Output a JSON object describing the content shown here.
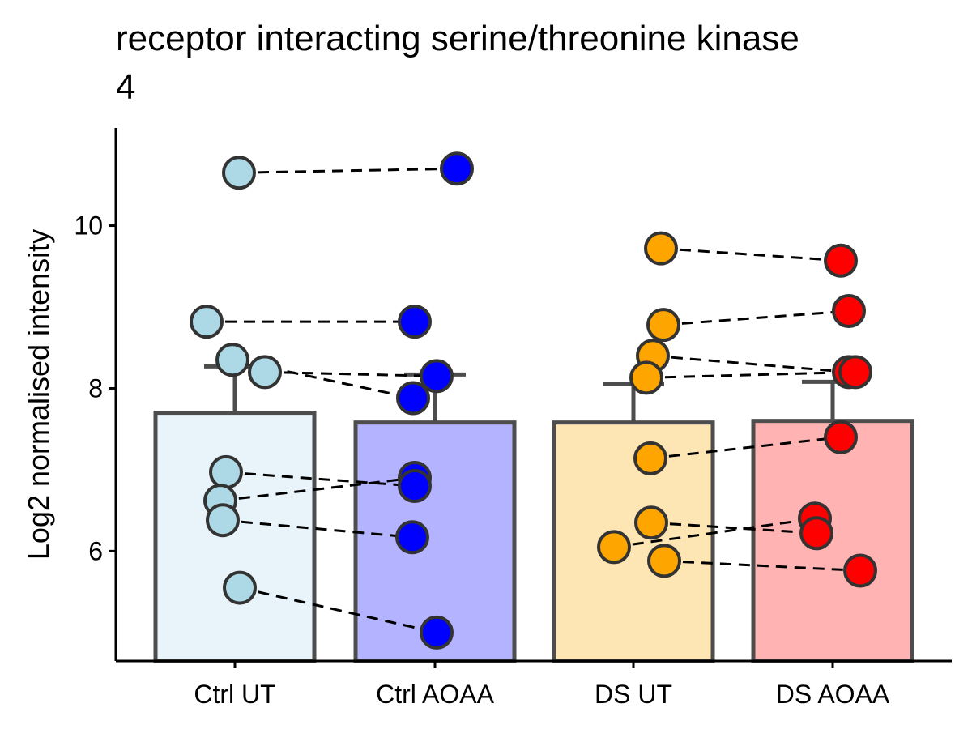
{
  "chart_data": {
    "type": "bar",
    "title_lines": [
      "receptor interacting serine/threonine kinase",
      "4"
    ],
    "xlabel": "",
    "ylabel": "Log2 normalised intensity",
    "ylim": [
      4.65,
      11.2
    ],
    "yticks": [
      6,
      8,
      10
    ],
    "yticklabels": [
      "6",
      "8",
      "10"
    ],
    "categories": [
      "Ctrl UT",
      "Ctrl AOAA",
      "DS UT",
      "DS AOAA"
    ],
    "bar_values": [
      7.7,
      7.58,
      7.58,
      7.6
    ],
    "error_upper": [
      8.27,
      8.17,
      8.05,
      8.08
    ],
    "bar_colors": [
      "#e8f3fa",
      "#b3b3ff",
      "#fde5b4",
      "#ffb3b3"
    ],
    "point_colors": [
      "#add8e6",
      "#0000ff",
      "#ffa500",
      "#ff0000"
    ],
    "points": [
      [
        10.65,
        8.82,
        8.35,
        8.2,
        6.97,
        6.62,
        6.38,
        5.55
      ],
      [
        10.7,
        8.82,
        8.15,
        7.88,
        6.9,
        6.8,
        6.17,
        5.0
      ],
      [
        9.72,
        8.78,
        8.4,
        8.13,
        7.14,
        6.35,
        6.05,
        5.88
      ],
      [
        9.57,
        8.95,
        8.2,
        8.2,
        7.4,
        6.4,
        6.22,
        5.76
      ]
    ],
    "pairs": [
      {
        "from": [
          0,
          0
        ],
        "to": [
          1,
          0
        ]
      },
      {
        "from": [
          0,
          1
        ],
        "to": [
          1,
          1
        ]
      },
      {
        "from": [
          0,
          2
        ],
        "to": [
          1,
          3
        ]
      },
      {
        "from": [
          0,
          3
        ],
        "to": [
          1,
          2
        ]
      },
      {
        "from": [
          0,
          4
        ],
        "to": [
          1,
          5
        ]
      },
      {
        "from": [
          0,
          5
        ],
        "to": [
          1,
          4
        ]
      },
      {
        "from": [
          0,
          6
        ],
        "to": [
          1,
          6
        ]
      },
      {
        "from": [
          0,
          7
        ],
        "to": [
          1,
          7
        ]
      },
      {
        "from": [
          2,
          0
        ],
        "to": [
          3,
          0
        ]
      },
      {
        "from": [
          2,
          1
        ],
        "to": [
          3,
          1
        ]
      },
      {
        "from": [
          2,
          2
        ],
        "to": [
          3,
          2
        ]
      },
      {
        "from": [
          2,
          3
        ],
        "to": [
          3,
          3
        ]
      },
      {
        "from": [
          2,
          4
        ],
        "to": [
          3,
          4
        ]
      },
      {
        "from": [
          2,
          5
        ],
        "to": [
          3,
          6
        ]
      },
      {
        "from": [
          2,
          6
        ],
        "to": [
          3,
          5
        ]
      },
      {
        "from": [
          2,
          7
        ],
        "to": [
          3,
          7
        ]
      }
    ],
    "grid": false,
    "legend": "none"
  }
}
